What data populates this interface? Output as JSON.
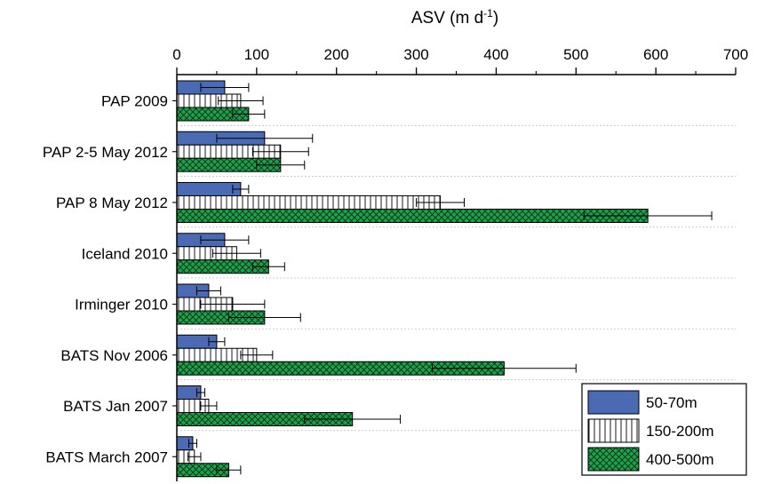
{
  "chart_data": {
    "type": "bar",
    "orientation": "horizontal",
    "xlabel": "ASV (m d",
    "xlabel_sup": "-1",
    "xlabel_close": ")",
    "xlim": [
      0,
      700
    ],
    "xticks": [
      "0",
      "100",
      "200",
      "300",
      "400",
      "500",
      "600",
      "700"
    ],
    "x_axis_position": "top",
    "categories": [
      "PAP 2009",
      "PAP 2-5 May 2012",
      "PAP 8 May 2012",
      "Iceland 2010",
      "Irminger 2010",
      "BATS Nov 2006",
      "BATS Jan 2007",
      "BATS March 2007"
    ],
    "grid": "horizontal dashed separators",
    "legend_position": "bottom-right",
    "series": [
      {
        "name": "50-70m",
        "color": "#4a6ab3",
        "pattern": "solid",
        "values": [
          60,
          110,
          80,
          60,
          40,
          50,
          30,
          20
        ],
        "errors": [
          30,
          60,
          10,
          30,
          15,
          10,
          5,
          5
        ]
      },
      {
        "name": "150-200m",
        "color": "#ffffff",
        "pattern": "vertical-lines",
        "values": [
          80,
          130,
          330,
          75,
          70,
          100,
          40,
          22
        ],
        "errors": [
          28,
          35,
          30,
          30,
          40,
          20,
          10,
          8
        ]
      },
      {
        "name": "400-500m",
        "color": "#1aa34a",
        "pattern": "crosshatch",
        "values": [
          90,
          130,
          590,
          115,
          110,
          410,
          220,
          65
        ],
        "errors": [
          20,
          30,
          80,
          20,
          45,
          90,
          60,
          15
        ]
      }
    ]
  }
}
